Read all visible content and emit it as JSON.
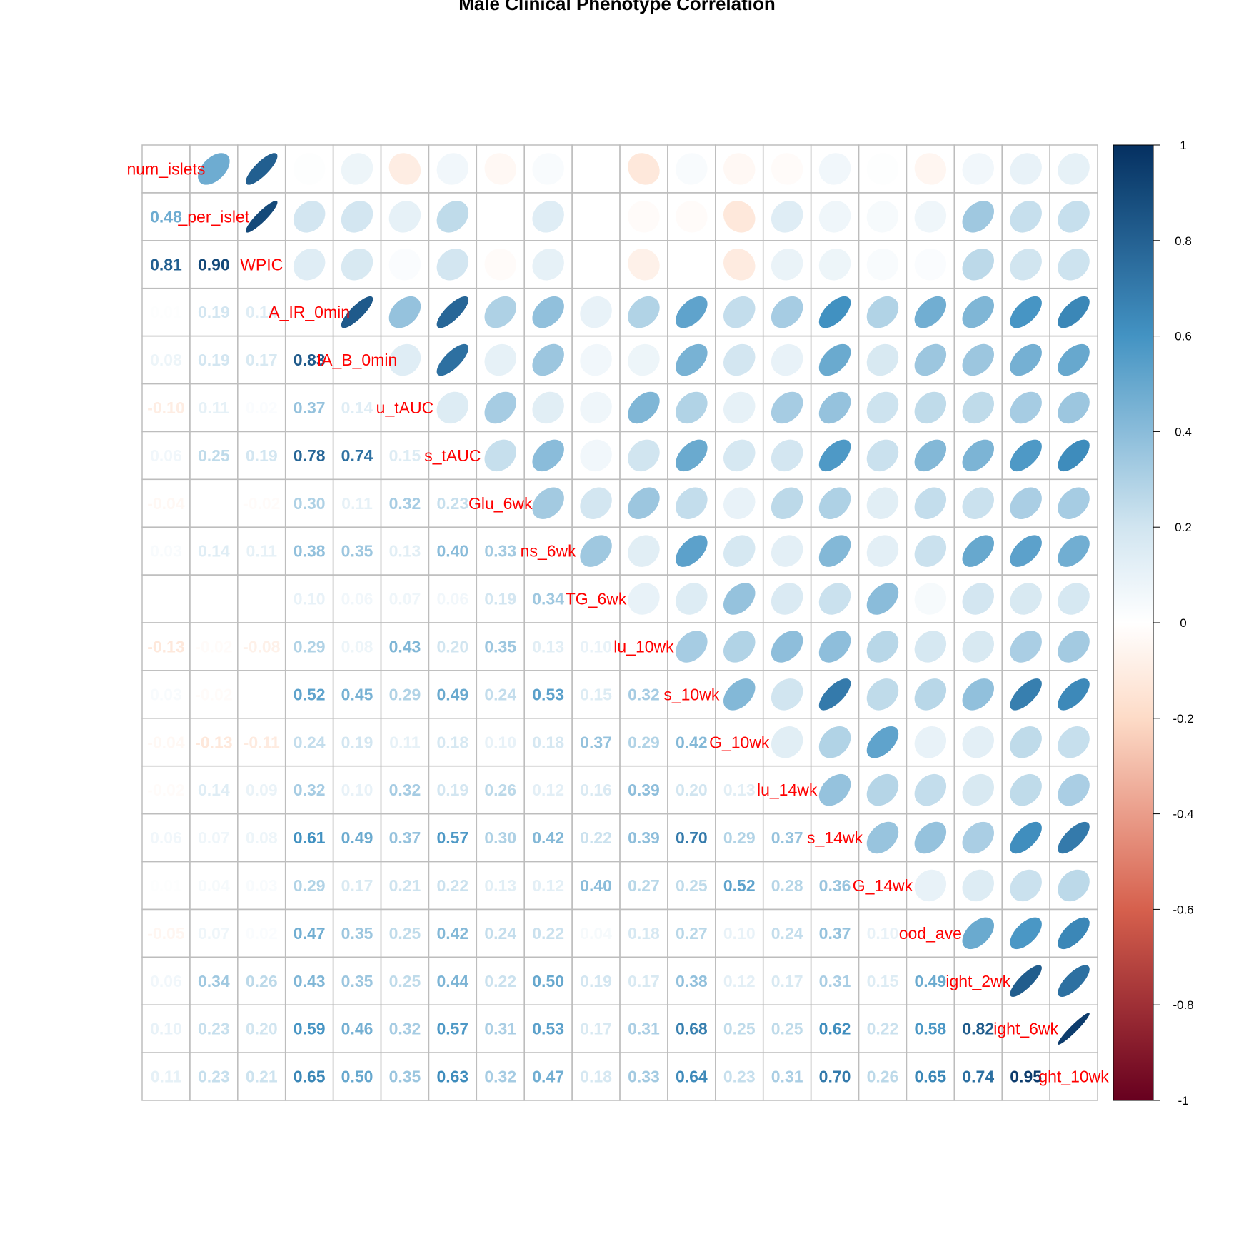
{
  "chart_data": {
    "type": "heatmap",
    "subtype": "correlation-matrix",
    "title": "Male Clinical Phenotype Correlation",
    "upper_method": "ellipse",
    "lower_method": "number",
    "grid": true,
    "legend": "colorbar-right",
    "colorbar": {
      "range": [
        -1,
        1
      ],
      "ticks": [
        1,
        0.8,
        0.6,
        0.4,
        0.2,
        0,
        -0.2,
        -0.4,
        -0.6,
        -0.8,
        -1
      ],
      "colors": {
        "negative_end": "#67001f",
        "neg_mid": "#d6604d",
        "neg_light": "#fddbc7",
        "zero": "#ffffff",
        "pos_light": "#d1e5f0",
        "pos_mid": "#4393c3",
        "positive_end": "#053061"
      }
    },
    "label_color": "#ff0000",
    "variables": [
      "num_islets",
      "_per_islet",
      "WPIC",
      "A_IR_0min",
      "IA_B_0min",
      "u_tAUC",
      "s_tAUC",
      "Glu_6wk",
      "ns_6wk",
      "TG_6wk",
      "lu_10wk",
      "s_10wk",
      "G_10wk",
      "lu_14wk",
      "s_14wk",
      "G_14wk",
      "ood_ave",
      "ight_2wk",
      "ight_6wk",
      "ght_10wk"
    ],
    "matrix": [
      [
        1.0,
        0.48,
        0.81,
        0.01,
        0.08,
        -0.1,
        0.06,
        -0.04,
        0.03,
        0.0,
        -0.13,
        0.03,
        -0.04,
        -0.02,
        0.06,
        0.01,
        -0.05,
        0.06,
        0.1,
        0.11
      ],
      [
        0.48,
        1.0,
        0.9,
        0.19,
        0.19,
        0.11,
        0.25,
        0.0,
        0.14,
        0.0,
        -0.02,
        -0.02,
        -0.13,
        0.14,
        0.07,
        0.04,
        0.07,
        0.34,
        0.23,
        0.23
      ],
      [
        0.81,
        0.9,
        1.0,
        0.14,
        0.17,
        0.02,
        0.19,
        -0.02,
        0.11,
        0.0,
        -0.08,
        0.0,
        -0.11,
        0.09,
        0.08,
        0.03,
        0.02,
        0.26,
        0.2,
        0.21
      ],
      [
        0.01,
        0.19,
        0.14,
        1.0,
        0.83,
        0.37,
        0.78,
        0.3,
        0.38,
        0.1,
        0.29,
        0.52,
        0.24,
        0.32,
        0.61,
        0.29,
        0.47,
        0.43,
        0.59,
        0.65
      ],
      [
        0.08,
        0.19,
        0.17,
        0.83,
        1.0,
        0.14,
        0.74,
        0.11,
        0.35,
        0.06,
        0.08,
        0.45,
        0.19,
        0.1,
        0.49,
        0.17,
        0.35,
        0.35,
        0.46,
        0.5
      ],
      [
        -0.1,
        0.11,
        0.02,
        0.37,
        0.14,
        1.0,
        0.15,
        0.32,
        0.13,
        0.07,
        0.43,
        0.29,
        0.11,
        0.32,
        0.37,
        0.21,
        0.25,
        0.25,
        0.32,
        0.35
      ],
      [
        0.06,
        0.25,
        0.19,
        0.78,
        0.74,
        0.15,
        1.0,
        0.23,
        0.4,
        0.06,
        0.2,
        0.49,
        0.18,
        0.19,
        0.57,
        0.22,
        0.42,
        0.44,
        0.57,
        0.63
      ],
      [
        -0.04,
        0.0,
        -0.02,
        0.3,
        0.11,
        0.32,
        0.23,
        1.0,
        0.33,
        0.19,
        0.35,
        0.24,
        0.1,
        0.26,
        0.3,
        0.13,
        0.24,
        0.22,
        0.31,
        0.32
      ],
      [
        0.03,
        0.14,
        0.11,
        0.38,
        0.35,
        0.13,
        0.4,
        0.33,
        1.0,
        0.34,
        0.13,
        0.53,
        0.18,
        0.12,
        0.42,
        0.12,
        0.22,
        0.5,
        0.53,
        0.47
      ],
      [
        0.0,
        0.0,
        0.0,
        0.1,
        0.06,
        0.07,
        0.06,
        0.19,
        0.34,
        1.0,
        0.1,
        0.15,
        0.37,
        0.16,
        0.22,
        0.4,
        0.04,
        0.19,
        0.17,
        0.18
      ],
      [
        -0.13,
        -0.02,
        -0.08,
        0.29,
        0.08,
        0.43,
        0.2,
        0.35,
        0.13,
        0.1,
        1.0,
        0.32,
        0.29,
        0.39,
        0.39,
        0.27,
        0.18,
        0.17,
        0.31,
        0.33
      ],
      [
        0.03,
        -0.02,
        0.0,
        0.52,
        0.45,
        0.29,
        0.49,
        0.24,
        0.53,
        0.15,
        0.32,
        1.0,
        0.42,
        0.2,
        0.7,
        0.25,
        0.27,
        0.38,
        0.68,
        0.64
      ],
      [
        -0.04,
        -0.13,
        -0.11,
        0.24,
        0.19,
        0.11,
        0.18,
        0.1,
        0.18,
        0.37,
        0.29,
        0.42,
        1.0,
        0.13,
        0.29,
        0.52,
        0.1,
        0.12,
        0.25,
        0.23
      ],
      [
        -0.02,
        0.14,
        0.09,
        0.32,
        0.1,
        0.32,
        0.19,
        0.26,
        0.12,
        0.16,
        0.39,
        0.2,
        0.13,
        1.0,
        0.37,
        0.28,
        0.24,
        0.17,
        0.25,
        0.31
      ],
      [
        0.06,
        0.07,
        0.08,
        0.61,
        0.49,
        0.37,
        0.57,
        0.3,
        0.42,
        0.22,
        0.39,
        0.7,
        0.29,
        0.37,
        1.0,
        0.36,
        0.37,
        0.31,
        0.62,
        0.7
      ],
      [
        0.01,
        0.04,
        0.03,
        0.29,
        0.17,
        0.21,
        0.22,
        0.13,
        0.12,
        0.4,
        0.27,
        0.25,
        0.52,
        0.28,
        0.36,
        1.0,
        0.1,
        0.15,
        0.22,
        0.26
      ],
      [
        -0.05,
        0.07,
        0.02,
        0.47,
        0.35,
        0.25,
        0.42,
        0.24,
        0.22,
        0.04,
        0.18,
        0.27,
        0.1,
        0.24,
        0.37,
        0.1,
        1.0,
        0.49,
        0.58,
        0.65
      ],
      [
        0.06,
        0.34,
        0.26,
        0.43,
        0.35,
        0.25,
        0.44,
        0.22,
        0.5,
        0.19,
        0.17,
        0.38,
        0.12,
        0.17,
        0.31,
        0.15,
        0.49,
        1.0,
        0.82,
        0.74
      ],
      [
        0.1,
        0.23,
        0.2,
        0.59,
        0.46,
        0.32,
        0.57,
        0.31,
        0.53,
        0.17,
        0.31,
        0.68,
        0.25,
        0.25,
        0.62,
        0.22,
        0.58,
        0.82,
        1.0,
        0.95
      ],
      [
        0.11,
        0.23,
        0.21,
        0.65,
        0.5,
        0.35,
        0.63,
        0.32,
        0.47,
        0.18,
        0.33,
        0.64,
        0.23,
        0.31,
        0.7,
        0.26,
        0.65,
        0.74,
        0.95,
        1.0
      ]
    ]
  }
}
